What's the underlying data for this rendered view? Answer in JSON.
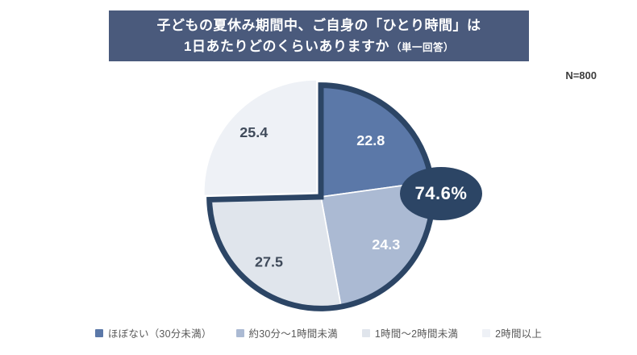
{
  "header": {
    "title_line1": "子どもの夏休み期間中、ご自身の「ひとり時間」は",
    "title_line2": "1日あたりどのくらいありますか",
    "title_note": "（単一回答）",
    "bg_color": "#4A5A7C",
    "text_color": "#FFFFFF"
  },
  "sample_size_label": "N=800",
  "chart_data": {
    "type": "pie",
    "title": "子どもの夏休み期間中、ご自身の「ひとり時間」は1日あたりどのくらいありますか（単一回答）",
    "unit": "percent",
    "sample_size": 800,
    "start_angle_deg_from_top": 0,
    "direction": "clockwise",
    "segments": [
      {
        "label": "ほぼない（30分未満）",
        "value": 22.8,
        "color": "#5B78A8",
        "label_color": "#FFFFFF"
      },
      {
        "label": "約30分〜1時間未満",
        "value": 24.3,
        "color": "#ABBAD3",
        "label_color": "#FFFFFF"
      },
      {
        "label": "1時間〜2時間未満",
        "value": 27.5,
        "color": "#E0E5EC",
        "label_color": "#3F4A5A"
      },
      {
        "label": "2時間以上",
        "value": 25.4,
        "color": "#EEF1F6",
        "label_color": "#3F4A5A"
      }
    ],
    "callout": {
      "text": "74.6%",
      "value": 74.6,
      "includes_segments": [
        "ほぼない（30分未満）",
        "約30分〜1時間未満",
        "1時間〜2時間未満"
      ],
      "color": "#2C4565",
      "text_color": "#FFFFFF"
    },
    "exploded_segment_index": 3,
    "legend_position": "bottom"
  }
}
